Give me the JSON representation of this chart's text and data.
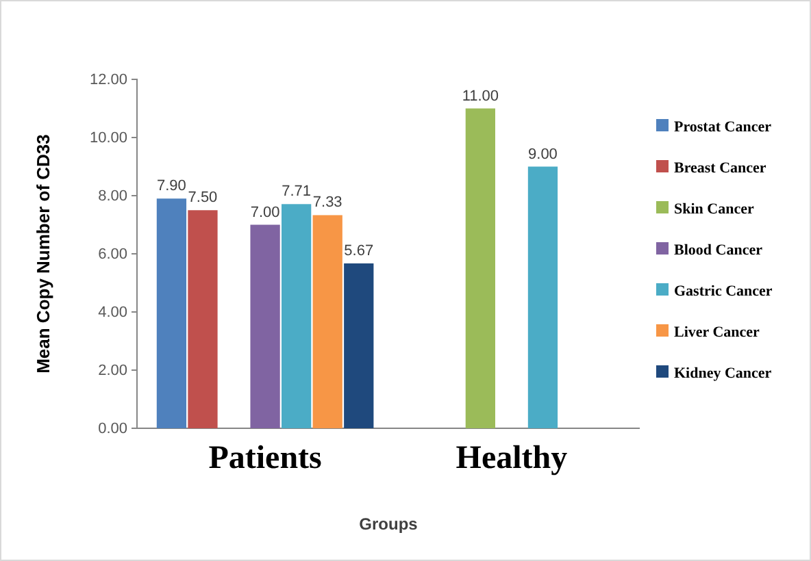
{
  "chart_data": {
    "type": "bar",
    "xlabel": "Groups",
    "ylabel": "Mean Copy Number of CD33",
    "categories": [
      "Patients",
      "Healthy"
    ],
    "series": [
      {
        "name": "Prostat Cancer",
        "color": "#4f81bd",
        "values": [
          7.9,
          null
        ],
        "value_labels": [
          "7.90",
          null
        ]
      },
      {
        "name": "Breast Cancer",
        "color": "#c0504d",
        "values": [
          7.5,
          null
        ],
        "value_labels": [
          "7.50",
          null
        ]
      },
      {
        "name": "Skin Cancer",
        "color": "#9bbb59",
        "values": [
          null,
          11
        ],
        "value_labels": [
          null,
          "11.00"
        ]
      },
      {
        "name": "Blood Cancer",
        "color": "#8064a2",
        "values": [
          7,
          null
        ],
        "value_labels": [
          "7.00",
          null
        ]
      },
      {
        "name": "Gastric Cancer",
        "color": "#4bacc6",
        "values": [
          7.71,
          9
        ],
        "value_labels": [
          "7.71",
          "9.00"
        ]
      },
      {
        "name": "Liver Cancer",
        "color": "#f79646",
        "values": [
          7.33,
          null
        ],
        "value_labels": [
          "7.33",
          null
        ]
      },
      {
        "name": "Kidney Cancer",
        "color": "#1f497d",
        "values": [
          5.67,
          null
        ],
        "value_labels": [
          "5.67",
          null
        ]
      }
    ],
    "ylim": [
      0,
      12
    ],
    "yticks": [
      {
        "value": 0,
        "label": "0.00"
      },
      {
        "value": 2,
        "label": "2.00"
      },
      {
        "value": 4,
        "label": "4.00"
      },
      {
        "value": 6,
        "label": "6.00"
      },
      {
        "value": 8,
        "label": "8.00"
      },
      {
        "value": 10,
        "label": "10.00"
      },
      {
        "value": 12,
        "label": "12.00"
      }
    ],
    "grid": false,
    "legend": "right"
  }
}
